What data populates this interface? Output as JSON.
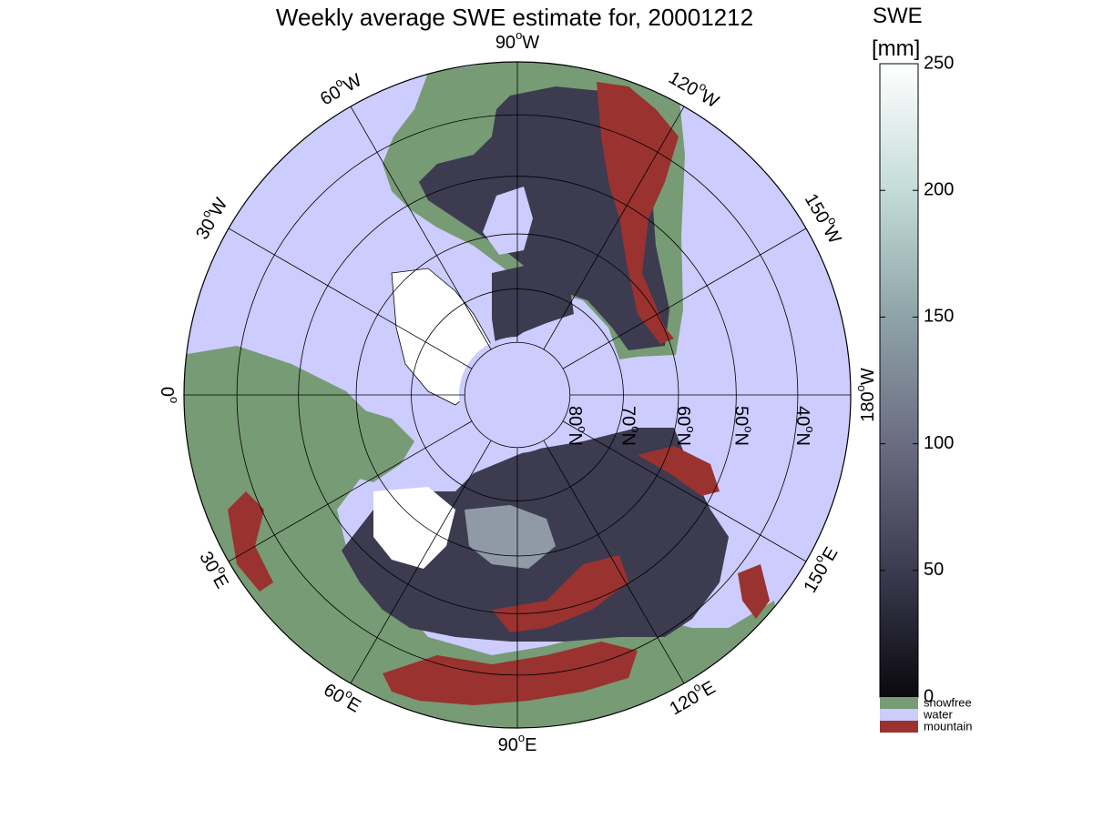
{
  "title": "Weekly average SWE estimate for, 20001212",
  "colorbar": {
    "title": "SWE",
    "unit": "[mm]",
    "min": 0,
    "max": 250,
    "ticks": [
      0,
      50,
      100,
      150,
      200,
      250
    ],
    "gradient_colors": [
      "#0a090e",
      "#3c3b50",
      "#6b6c82",
      "#8ea3a8",
      "#c4dcd8",
      "#ffffff"
    ],
    "categories": [
      {
        "label": "snowfree",
        "color": "#779b74"
      },
      {
        "label": "water",
        "color": "#ccccfe"
      },
      {
        "label": "mountain",
        "color": "#9a3230"
      }
    ]
  },
  "map": {
    "projection": "north polar stereographic",
    "ocean_color": "#ccccfe",
    "snowfree_color": "#779b74",
    "mountain_color": "#9a3230",
    "snow_color": "#3c3b50",
    "longitude_labels": [
      {
        "text": "90°W",
        "lon_label": "90",
        "hemi": "W",
        "lon": -90
      },
      {
        "text": "120°W",
        "lon_label": "120",
        "hemi": "W",
        "lon": -120
      },
      {
        "text": "150°W",
        "lon_label": "150",
        "hemi": "W",
        "lon": -150
      },
      {
        "text": "180°W",
        "lon_label": "180",
        "hemi": "W",
        "lon": 180
      },
      {
        "text": "150°E",
        "lon_label": "150",
        "hemi": "E",
        "lon": 150
      },
      {
        "text": "120°E",
        "lon_label": "120",
        "hemi": "E",
        "lon": 120
      },
      {
        "text": "90°E",
        "lon_label": "90",
        "hemi": "E",
        "lon": 90
      },
      {
        "text": "60°E",
        "lon_label": "60",
        "hemi": "E",
        "lon": 60
      },
      {
        "text": "30°E",
        "lon_label": "30",
        "hemi": "E",
        "lon": 30
      },
      {
        "text": "0°",
        "lon_label": "0",
        "hemi": "",
        "lon": 0
      },
      {
        "text": "30°W",
        "lon_label": "30",
        "hemi": "W",
        "lon": -30
      },
      {
        "text": "60°W",
        "lon_label": "60",
        "hemi": "W",
        "lon": -60
      }
    ],
    "latitude_labels": [
      {
        "text": "80°N",
        "lat_label": "80",
        "lat": 80
      },
      {
        "text": "70°N",
        "lat_label": "70",
        "lat": 70
      },
      {
        "text": "60°N",
        "lat_label": "60",
        "lat": 60
      },
      {
        "text": "50°N",
        "lat_label": "50",
        "lat": 50
      },
      {
        "text": "40°N",
        "lat_label": "40",
        "lat": 40
      }
    ],
    "latitude_circles": [
      80,
      70,
      60,
      50,
      40
    ],
    "outer_latitude": 32
  }
}
